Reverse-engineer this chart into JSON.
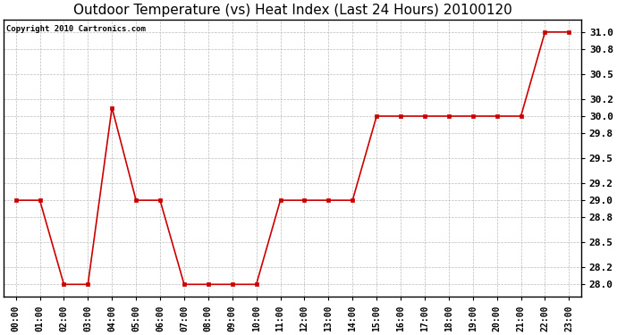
{
  "title": "Outdoor Temperature (vs) Heat Index (Last 24 Hours) 20100120",
  "copyright": "Copyright 2010 Cartronics.com",
  "x_labels": [
    "00:00",
    "01:00",
    "02:00",
    "03:00",
    "04:00",
    "05:00",
    "06:00",
    "07:00",
    "08:00",
    "09:00",
    "10:00",
    "11:00",
    "12:00",
    "13:00",
    "14:00",
    "15:00",
    "16:00",
    "17:00",
    "18:00",
    "19:00",
    "20:00",
    "21:00",
    "22:00",
    "23:00"
  ],
  "y_values": [
    29.0,
    29.0,
    28.0,
    28.0,
    30.1,
    29.0,
    29.0,
    28.0,
    28.0,
    28.0,
    28.0,
    29.0,
    29.0,
    29.0,
    29.0,
    30.0,
    30.0,
    30.0,
    30.0,
    30.0,
    30.0,
    30.0,
    31.0,
    31.0
  ],
  "ylim": [
    27.85,
    31.15
  ],
  "yticks": [
    28.0,
    28.2,
    28.5,
    28.8,
    29.0,
    29.2,
    29.5,
    29.8,
    30.0,
    30.2,
    30.5,
    30.8,
    31.0
  ],
  "ytick_labels": [
    "28.0",
    "28.2",
    "28.5",
    "28.8",
    "29.0",
    "29.2",
    "29.5",
    "29.8",
    "30.0",
    "30.2",
    "30.5",
    "30.8",
    "31.0"
  ],
  "line_color": "#cc0000",
  "marker": "s",
  "marker_size": 2.5,
  "grid_color": "#bbbbbb",
  "background_color": "#ffffff",
  "title_fontsize": 11,
  "copyright_fontsize": 6.5,
  "tick_fontsize": 7,
  "ytick_fontsize": 8
}
